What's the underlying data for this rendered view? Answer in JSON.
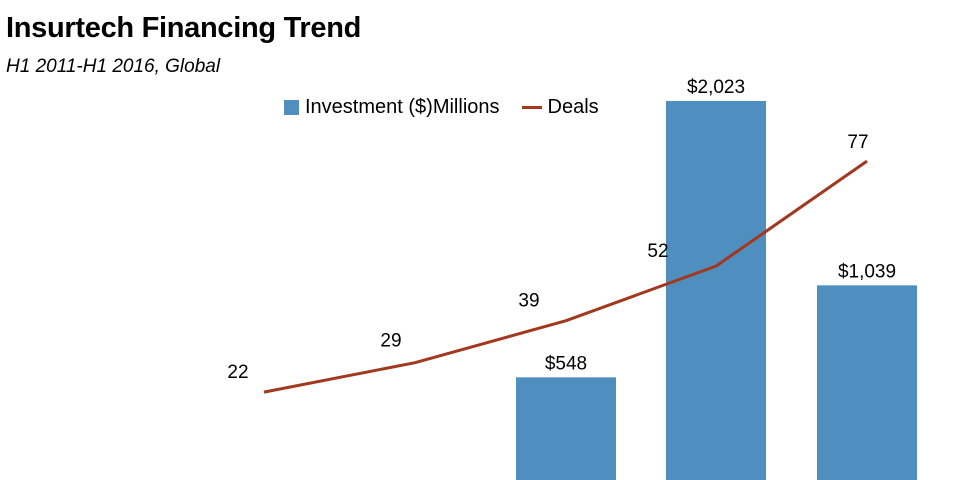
{
  "chart_data": {
    "type": "bar",
    "title": "Insurtech Financing Trend",
    "subtitle": "H1 2011-H1 2016, Global",
    "xlabel": "",
    "ylabel": "",
    "legend_position": "top",
    "grid": false,
    "series": [
      {
        "name": "Investment ($)Millions",
        "kind": "bar",
        "color": "#4e8fc0",
        "values": [
          null,
          null,
          548,
          2023,
          1039
        ],
        "labels": [
          "",
          "",
          "$548",
          "$2,023",
          "$1,039"
        ]
      },
      {
        "name": "Deals",
        "kind": "line",
        "color": "#a2381d",
        "values": [
          22,
          29,
          39,
          52,
          77
        ],
        "labels": [
          "22",
          "29",
          "39",
          "52",
          "77"
        ]
      }
    ]
  }
}
